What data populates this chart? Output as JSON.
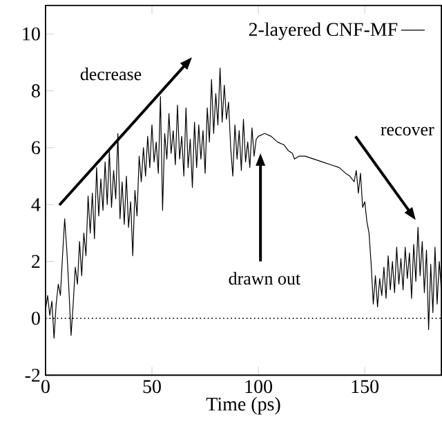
{
  "chart_data": {
    "type": "line",
    "xlabel": "Time (ps)",
    "xlim": [
      0,
      186
    ],
    "ylim": [
      -2,
      11
    ],
    "xticks": [
      0,
      50,
      100,
      150
    ],
    "yticks": [
      -2,
      0,
      2,
      4,
      6,
      8,
      10
    ],
    "grid": false,
    "legend": "top right",
    "marker": "none",
    "line_style": "solid",
    "ref_lines": [
      {
        "axis": "y",
        "value": 0,
        "line_style": "dotted",
        "color": "#000000"
      }
    ],
    "annotations": [
      "decrease",
      "drawn out",
      "recover"
    ],
    "series": [
      {
        "name": "2-layered CNF-MF",
        "color": "#000000",
        "x": [
          0,
          1,
          2,
          3,
          4,
          5,
          6,
          7,
          8,
          9,
          10,
          11,
          12,
          13,
          14,
          15,
          16,
          17,
          18,
          19,
          20,
          21,
          22,
          23,
          24,
          25,
          26,
          27,
          28,
          29,
          30,
          31,
          32,
          33,
          34,
          35,
          36,
          37,
          38,
          39,
          40,
          41,
          42,
          43,
          44,
          45,
          46,
          47,
          48,
          49,
          50,
          51,
          52,
          53,
          54,
          55,
          56,
          57,
          58,
          59,
          60,
          61,
          62,
          63,
          64,
          65,
          66,
          67,
          68,
          69,
          70,
          71,
          72,
          73,
          74,
          75,
          76,
          77,
          78,
          79,
          80,
          81,
          82,
          83,
          84,
          85,
          86,
          87,
          88,
          89,
          90,
          91,
          92,
          93,
          94,
          95,
          96,
          97,
          98,
          99,
          100,
          103,
          106,
          109,
          112,
          114,
          116,
          117,
          119,
          122,
          126,
          130,
          134,
          138,
          141,
          143,
          145,
          146,
          147,
          148,
          149,
          150,
          151,
          152,
          153,
          154,
          155,
          156,
          157,
          158,
          159,
          160,
          161,
          162,
          163,
          164,
          165,
          166,
          167,
          168,
          169,
          170,
          171,
          172,
          173,
          174,
          175,
          176,
          177,
          178,
          179,
          180,
          181,
          182,
          183,
          184,
          185,
          186
        ],
        "values": [
          0.3,
          0.8,
          0.1,
          0.6,
          -0.7,
          0.5,
          1.2,
          0.8,
          2.2,
          3.5,
          2.4,
          1.0,
          -0.6,
          0.5,
          1.8,
          1.2,
          2.7,
          1.5,
          3.0,
          2.2,
          4.3,
          3.0,
          4.4,
          2.8,
          5.3,
          3.6,
          4.9,
          3.8,
          5.5,
          4.0,
          5.9,
          3.9,
          5.2,
          4.2,
          6.5,
          3.5,
          4.8,
          3.3,
          5.0,
          3.2,
          4.1,
          2.2,
          4.5,
          3.6,
          5.7,
          4.8,
          6.0,
          5.0,
          6.4,
          5.3,
          6.8,
          5.5,
          6.2,
          5.1,
          7.8,
          3.8,
          6.5,
          5.6,
          7.2,
          5.8,
          6.6,
          5.4,
          7.5,
          5.6,
          6.4,
          5.0,
          7.4,
          5.3,
          6.3,
          4.6,
          6.9,
          5.3,
          6.8,
          5.6,
          6.6,
          5.1,
          7.4,
          6.2,
          8.4,
          6.5,
          7.9,
          6.8,
          8.8,
          6.9,
          8.2,
          7.0,
          7.6,
          6.0,
          5.0,
          6.8,
          5.6,
          6.6,
          5.2,
          7.0,
          5.5,
          6.2,
          5.3,
          6.7,
          5.7,
          6.3,
          6.4,
          6.5,
          6.4,
          6.2,
          6.1,
          5.9,
          5.8,
          5.6,
          5.7,
          5.7,
          5.6,
          5.5,
          5.4,
          5.3,
          5.1,
          5.0,
          4.8,
          5.2,
          4.4,
          5.1,
          3.9,
          4.1,
          3.4,
          3.0,
          1.9,
          0.5,
          1.5,
          0.4,
          1.4,
          0.8,
          1.8,
          0.7,
          2.2,
          1.0,
          2.0,
          0.9,
          2.5,
          1.2,
          2.1,
          1.0,
          2.5,
          1.4,
          2.3,
          0.7,
          2.6,
          1.3,
          3.2,
          1.5,
          2.7,
          0.9,
          2.4,
          -0.4,
          1.9,
          0.2,
          2.5,
          0.5,
          2.0,
          1.0
        ]
      }
    ]
  }
}
